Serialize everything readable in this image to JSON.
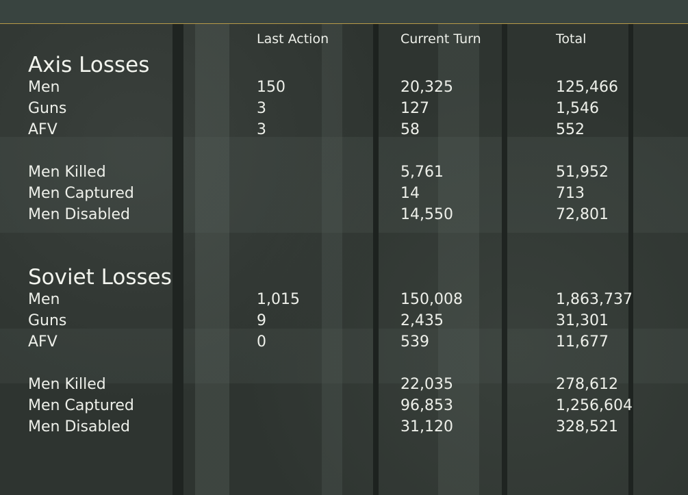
{
  "columns": {
    "last_action": "Last Action",
    "current_turn": "Current Turn",
    "total": "Total"
  },
  "axis": {
    "title": "Axis Losses",
    "rows": [
      {
        "label": "Men",
        "last": "150",
        "current": "20,325",
        "total": "125,466"
      },
      {
        "label": "Guns",
        "last": "3",
        "current": "127",
        "total": "1,546"
      },
      {
        "label": "AFV",
        "last": "3",
        "current": "58",
        "total": "552"
      },
      {
        "label": "Men Killed",
        "last": "",
        "current": "5,761",
        "total": "51,952"
      },
      {
        "label": "Men Captured",
        "last": "",
        "current": "14",
        "total": "713"
      },
      {
        "label": "Men Disabled",
        "last": "",
        "current": "14,550",
        "total": "72,801"
      }
    ]
  },
  "soviet": {
    "title": "Soviet Losses",
    "rows": [
      {
        "label": "Men",
        "last": "1,015",
        "current": "150,008",
        "total": "1,863,737"
      },
      {
        "label": "Guns",
        "last": "9",
        "current": "2,435",
        "total": "31,301"
      },
      {
        "label": "AFV",
        "last": "0",
        "current": "539",
        "total": "11,677"
      },
      {
        "label": "Men Killed",
        "last": "",
        "current": "22,035",
        "total": "278,612"
      },
      {
        "label": "Men Captured",
        "last": "",
        "current": "96,853",
        "total": "1,256,604"
      },
      {
        "label": "Men Disabled",
        "last": "",
        "current": "31,120",
        "total": "328,521"
      }
    ]
  },
  "colors": {
    "background": "#2e3430",
    "topbar": "#394440",
    "accent_line": "#b89a48",
    "text": "#eef0ea"
  }
}
